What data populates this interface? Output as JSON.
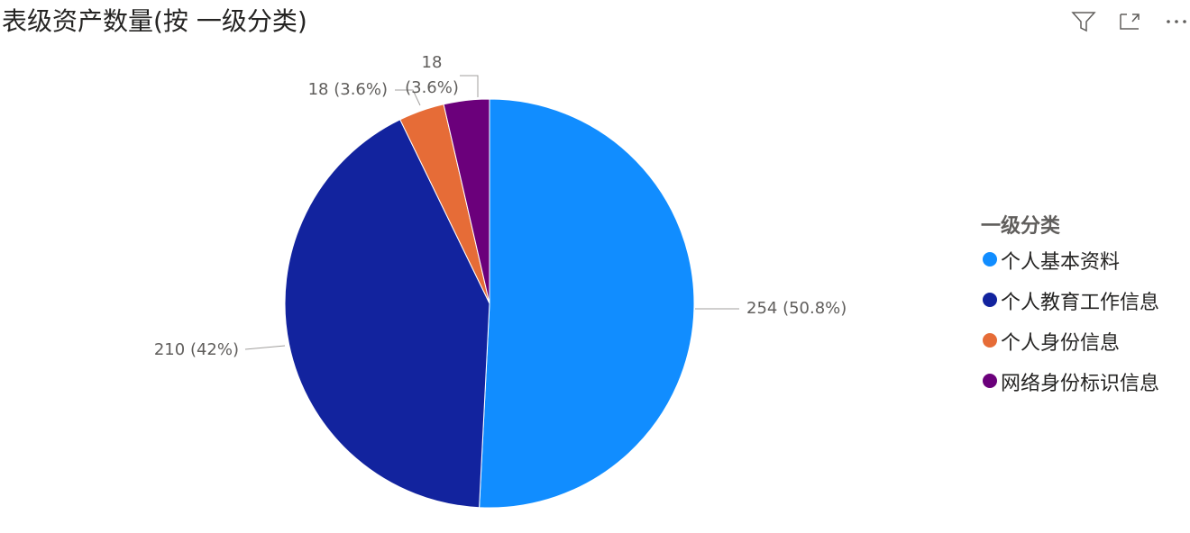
{
  "chart_data": {
    "type": "pie",
    "title": "表级资产数量(按 一级分类)",
    "legend_title": "一级分类",
    "categories": [
      "个人基本资料",
      "个人教育工作信息",
      "个人身份信息",
      "网络身份标识信息"
    ],
    "values": [
      254,
      210,
      18,
      18
    ],
    "value_labels": [
      "254 (50.8%)",
      "210 (42%)",
      "18 (3.6%)",
      "18 (3.6%)"
    ],
    "colors": [
      "#118DFF",
      "#12239E",
      "#E66C37",
      "#6B007B"
    ],
    "legend": "right"
  }
}
